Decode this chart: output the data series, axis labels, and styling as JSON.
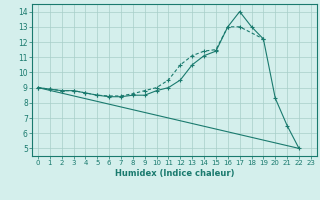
{
  "xlabel": "Humidex (Indice chaleur)",
  "bg_color": "#d4efec",
  "line_color": "#1a7a6e",
  "grid_color": "#a8cfc9",
  "xlim": [
    -0.5,
    23.5
  ],
  "ylim": [
    4.5,
    14.5
  ],
  "xticks": [
    0,
    1,
    2,
    3,
    4,
    5,
    6,
    7,
    8,
    9,
    10,
    11,
    12,
    13,
    14,
    15,
    16,
    17,
    18,
    19,
    20,
    21,
    22,
    23
  ],
  "yticks": [
    5,
    6,
    7,
    8,
    9,
    10,
    11,
    12,
    13,
    14
  ],
  "line1_x": [
    0,
    1,
    2,
    3,
    4,
    5,
    6,
    7,
    8,
    9,
    10,
    11,
    12,
    13,
    14,
    15,
    16,
    17,
    18,
    19,
    20,
    21,
    22
  ],
  "line1_y": [
    9.0,
    8.9,
    8.8,
    8.8,
    8.65,
    8.5,
    8.4,
    8.4,
    8.5,
    8.5,
    8.8,
    9.0,
    9.5,
    10.5,
    11.1,
    11.4,
    13.0,
    14.0,
    13.0,
    12.2,
    8.3,
    6.5,
    5.0
  ],
  "line2_x": [
    0,
    1,
    2,
    3,
    4,
    5,
    6,
    7,
    8,
    9,
    10,
    11,
    12,
    13,
    14,
    15,
    16,
    17,
    19
  ],
  "line2_y": [
    9.0,
    8.9,
    8.8,
    8.8,
    8.65,
    8.5,
    8.45,
    8.45,
    8.6,
    8.8,
    9.0,
    9.5,
    10.5,
    11.1,
    11.4,
    11.5,
    13.0,
    13.0,
    12.2
  ],
  "line3_x": [
    0,
    22
  ],
  "line3_y": [
    9.0,
    5.0
  ],
  "figsize": [
    3.2,
    2.0
  ],
  "dpi": 100
}
